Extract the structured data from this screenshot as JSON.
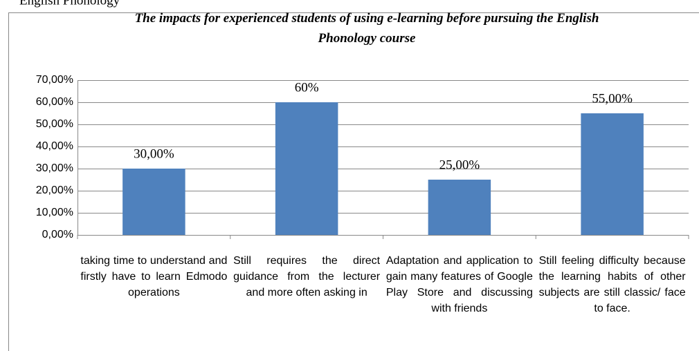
{
  "heading": "English Phonology",
  "chart_data": {
    "type": "bar",
    "title": "The impacts for experienced students of using e-learning before pursuing the English Phonology course",
    "categories": [
      "taking time to understand and firstly have to learn Edmodo operations",
      "Still requires the direct guidance from the lecturer and more often asking in",
      "Adaptation and application to gain many features of Google Play Store and discussing with friends",
      "Still feeling difficulty because the learning habits of other subjects are still classic/ face to face."
    ],
    "values": [
      30,
      60,
      25,
      55
    ],
    "value_labels": [
      "30,00%",
      "60%",
      "25,00%",
      "55,00%"
    ],
    "color": "#4f81bd",
    "ylim": [
      0,
      70
    ],
    "yticks": [
      {
        "value": 0,
        "label": "0,00%"
      },
      {
        "value": 10,
        "label": "10,00%"
      },
      {
        "value": 20,
        "label": "20,00%"
      },
      {
        "value": 30,
        "label": "30,00%"
      },
      {
        "value": 40,
        "label": "40,00%"
      },
      {
        "value": 50,
        "label": "50,00%"
      },
      {
        "value": 60,
        "label": "60,00%"
      },
      {
        "value": 70,
        "label": "70,00%"
      }
    ],
    "grid": true
  }
}
